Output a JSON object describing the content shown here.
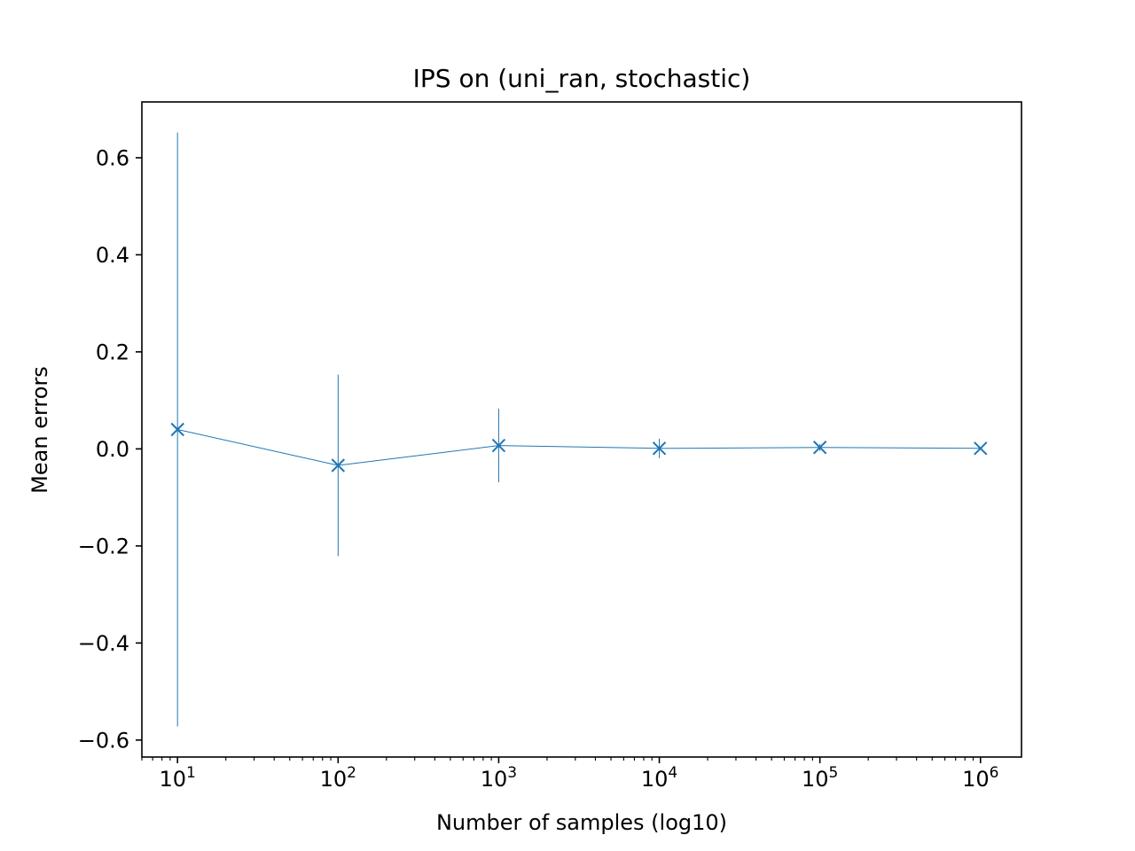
{
  "chart_data": {
    "type": "line",
    "title": "IPS on (uni_ran, stochastic)",
    "xlabel": "Number of samples (log10)",
    "ylabel": "Mean errors",
    "x_scale": "log",
    "xlim": [
      6,
      1800000
    ],
    "ylim": [
      -0.635,
      0.715
    ],
    "grid": false,
    "x_ticks": [
      {
        "value": 10,
        "base": "10",
        "exp": "1"
      },
      {
        "value": 100,
        "base": "10",
        "exp": "2"
      },
      {
        "value": 1000,
        "base": "10",
        "exp": "3"
      },
      {
        "value": 10000,
        "base": "10",
        "exp": "4"
      },
      {
        "value": 100000,
        "base": "10",
        "exp": "5"
      },
      {
        "value": 1000000,
        "base": "10",
        "exp": "6"
      }
    ],
    "y_ticks": [
      {
        "value": 0.6,
        "label": "0.6"
      },
      {
        "value": 0.4,
        "label": "0.4"
      },
      {
        "value": 0.2,
        "label": "0.2"
      },
      {
        "value": 0.0,
        "label": "0.0"
      },
      {
        "value": -0.2,
        "label": "−0.2"
      },
      {
        "value": -0.4,
        "label": "−0.4"
      },
      {
        "value": -0.6,
        "label": "−0.6"
      }
    ],
    "series": [
      {
        "color": "#1f77b4",
        "marker": "x",
        "x": [
          10,
          100,
          1000,
          10000,
          100000,
          1000000
        ],
        "y": [
          0.04,
          -0.034,
          0.007,
          0.001,
          0.003,
          0.001
        ],
        "yerr": [
          0.612,
          0.187,
          0.076,
          0.02,
          0.007,
          0.002
        ]
      }
    ]
  }
}
